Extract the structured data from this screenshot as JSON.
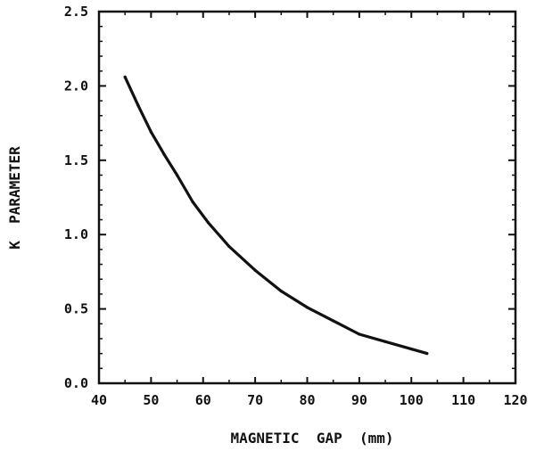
{
  "chart_data": {
    "type": "line",
    "title": "",
    "xlabel": "MAGNETIC  GAP  (mm)",
    "ylabel": "K  PARAMETER",
    "xlim": [
      40,
      120
    ],
    "ylim": [
      0.0,
      2.5
    ],
    "x_ticks": [
      "40",
      "50",
      "60",
      "70",
      "80",
      "90",
      "100",
      "110",
      "120"
    ],
    "y_ticks": [
      "0.0",
      "0.5",
      "1.0",
      "1.5",
      "2.0",
      "2.5"
    ],
    "grid": false,
    "series": [
      {
        "x": [
          45,
          47.5,
          50,
          52.5,
          55,
          58,
          61,
          65,
          70,
          75,
          80,
          85,
          90,
          95,
          100,
          103
        ],
        "values": [
          2.06,
          1.87,
          1.69,
          1.54,
          1.4,
          1.22,
          1.08,
          0.92,
          0.76,
          0.62,
          0.51,
          0.42,
          0.33,
          0.28,
          0.23,
          0.2
        ]
      }
    ],
    "colors": {
      "line": "#111111",
      "axes": "#111111"
    }
  }
}
